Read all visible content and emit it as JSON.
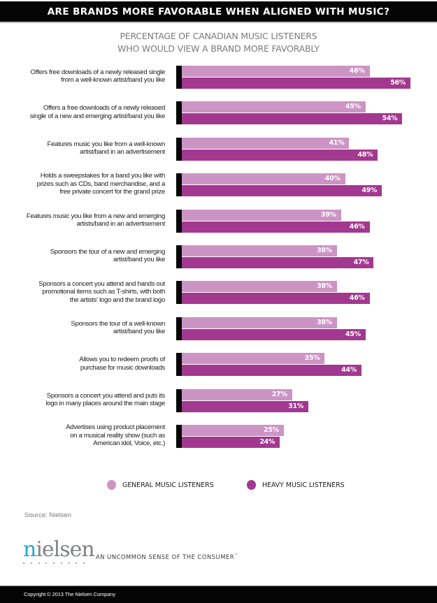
{
  "header": {
    "title": "ARE BRANDS MORE FAVORABLE WHEN ALIGNED WITH MUSIC?"
  },
  "subtitle": {
    "line1": "PERCENTAGE OF CANADIAN MUSIC LISTENERS",
    "line2": "WHO WOULD VIEW A BRAND MORE FAVORABLY"
  },
  "colors": {
    "general": "#cc94c4",
    "heavy": "#a23890",
    "anchor": "#050505",
    "header_bg": "#050505"
  },
  "chart_data": {
    "type": "bar",
    "orientation": "horizontal",
    "title": "ARE BRANDS MORE FAVORABLE WHEN ALIGNED WITH MUSIC?",
    "subtitle": "PERCENTAGE OF CANADIAN MUSIC LISTENERS WHO WOULD VIEW A BRAND MORE FAVORABLY",
    "xlabel": "",
    "ylabel": "",
    "xlim": [
      0,
      56
    ],
    "grid": false,
    "legend_position": "bottom",
    "value_suffix": "%",
    "categories": [
      [
        "Offers free downloads of a newly released single",
        "from a well-known artist/band you like"
      ],
      [
        "Offers a free downloads of a newly released",
        "single of a new and emerging artist/band you like"
      ],
      [
        "Features music you like from a well-known",
        "artist/band in an advertisement"
      ],
      [
        "Holds a sweepstakes for a band you like with",
        "prizes such as CDs, band merchandise, and a",
        "free private concert for the grand prize"
      ],
      [
        "Features music you like from a new and emerging",
        "artists/band in an advertisement"
      ],
      [
        "Sponsors the tour of a new and emerging",
        "artist/band you like"
      ],
      [
        "Sponsors a concert you attend and hands out",
        "promotional items such as T-shirts, with both",
        "the artists' logo and the brand logo"
      ],
      [
        "Sponsors the tour of a well-known",
        "artist/band you like"
      ],
      [
        "Allows you to redeem proofs of",
        "purchase for music downloads"
      ],
      [
        "Sponsors a concert you attend and puts its",
        "logo in many places around the main stage"
      ],
      [
        "Advertises using product placement",
        "on a musical reality show (such as",
        "American idol, Voice, etc.)"
      ]
    ],
    "series": [
      {
        "name": "GENERAL MUSIC LISTENERS",
        "color": "#cc94c4",
        "values": [
          46,
          45,
          41,
          40,
          39,
          38,
          38,
          38,
          35,
          27,
          25
        ]
      },
      {
        "name": "HEAVY MUSIC LISTENERS",
        "color": "#a23890",
        "values": [
          56,
          54,
          48,
          49,
          46,
          47,
          46,
          45,
          44,
          31,
          24
        ]
      }
    ]
  },
  "legend": {
    "general_label": "GENERAL MUSIC LISTENERS",
    "heavy_label": "HEAVY MUSIC LISTENERS"
  },
  "source": "Source: Nielsen",
  "logo": {
    "first_letter": "n",
    "rest": "ielsen",
    "dot_count": 9
  },
  "tagline": {
    "text": "AN UNCOMMON SENSE OF THE CONSUMER",
    "mark": "™"
  },
  "footer": {
    "copyright": "Copyright © 2013 The Nielsen Company"
  }
}
